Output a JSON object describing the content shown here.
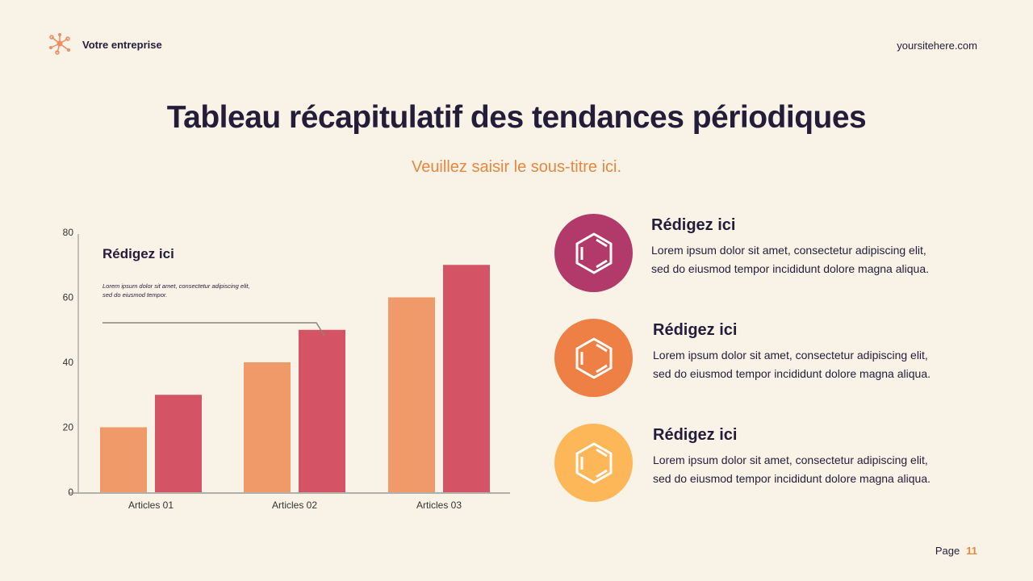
{
  "header": {
    "brand": "Votre entreprise",
    "site": "yoursitehere.com"
  },
  "title": "Tableau récapitulatif des tendances périodiques",
  "subtitle": "Veuillez saisir le sous-titre ici.",
  "chart_data": {
    "type": "bar",
    "categories": [
      "Articles 01",
      "Articles 02",
      "Articles 03"
    ],
    "series": [
      {
        "values": [
          20,
          40,
          60
        ],
        "color": "#f09a6a"
      },
      {
        "values": [
          30,
          50,
          70
        ],
        "color": "#d45466"
      }
    ],
    "ylim": [
      0,
      80
    ],
    "yticks": [
      0,
      20,
      40,
      60,
      80
    ],
    "grid": false,
    "annotation": {
      "title": "Rédigez ici",
      "text1": "Lorem ipsum dolor sit amet, consectetur adipiscing elit,",
      "text2": "sed do eiusmod tempor."
    }
  },
  "items": [
    {
      "title": "Rédigez ici",
      "line1": "Lorem ipsum dolor sit amet, consectetur adipiscing elit,",
      "line2": "sed do eiusmod tempor incididunt dolore magna aliqua.",
      "icon": "hexagon-ring-icon",
      "color": "#b13a6a"
    },
    {
      "title": "Rédigez ici",
      "line1": "Lorem ipsum dolor sit amet, consectetur adipiscing elit,",
      "line2": "sed do eiusmod tempor incididunt dolore magna aliqua.",
      "icon": "hexagon-ring-icon",
      "color": "#ee7f45"
    },
    {
      "title": "Rédigez ici",
      "line1": "Lorem ipsum dolor sit amet, consectetur adipiscing elit,",
      "line2": "sed do eiusmod tempor incididunt dolore magna aliqua.",
      "icon": "hexagon-ring-icon",
      "color": "#fdb658"
    }
  ],
  "footer": {
    "page_label": "Page",
    "page_number": "11"
  }
}
